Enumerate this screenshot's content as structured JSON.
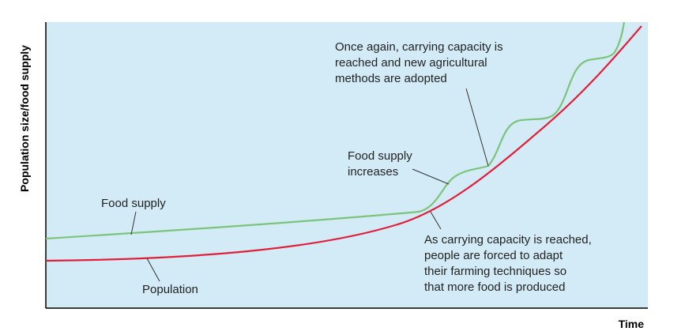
{
  "axes": {
    "y_label": "Population size/food supply",
    "x_label": "Time"
  },
  "annotations": {
    "food_supply": {
      "lines": [
        "Food supply"
      ]
    },
    "population": {
      "lines": [
        "Population"
      ]
    },
    "increases": {
      "lines": [
        "Food supply",
        "increases"
      ]
    },
    "once_again": {
      "lines": [
        "Once again, carrying capacity is",
        "reached and new agricultural",
        "methods are adopted"
      ]
    },
    "carrying": {
      "lines": [
        "As carrying capacity is reached,",
        "people are forced to adapt",
        "their farming techniques so",
        "that more food is produced"
      ]
    }
  }
}
